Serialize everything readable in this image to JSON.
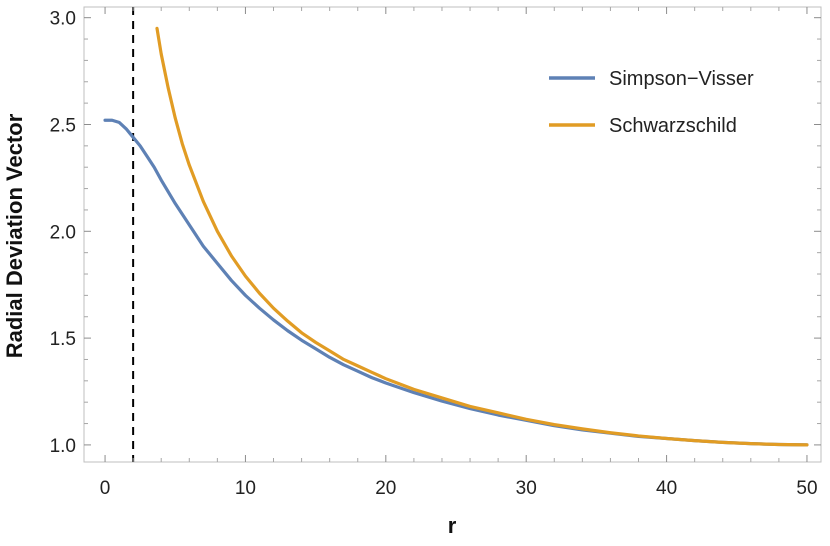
{
  "chart_data": {
    "type": "line",
    "title": "",
    "xlabel": "r",
    "ylabel": "Radial Deviation Vector",
    "xlim": [
      -1.5,
      51
    ],
    "ylim": [
      0.92,
      3.05
    ],
    "x_ticks": [
      0,
      10,
      20,
      30,
      40,
      50
    ],
    "y_ticks": [
      1.0,
      1.5,
      2.0,
      2.5,
      3.0
    ],
    "x_tick_labels": [
      "0",
      "10",
      "20",
      "30",
      "40",
      "50"
    ],
    "y_tick_labels": [
      "1.0",
      "1.5",
      "2.0",
      "2.5",
      "3.0"
    ],
    "grid": false,
    "legend_position": "top-right",
    "reference_line": {
      "x": 2,
      "style": "dashed",
      "color": "#000000"
    },
    "series": [
      {
        "name": "Simpson−Visser",
        "color": "#5E81B5",
        "points": [
          [
            0,
            2.52
          ],
          [
            0.5,
            2.52
          ],
          [
            1,
            2.51
          ],
          [
            1.5,
            2.48
          ],
          [
            2,
            2.44
          ],
          [
            2.5,
            2.4
          ],
          [
            3,
            2.35
          ],
          [
            3.5,
            2.3
          ],
          [
            4,
            2.24
          ],
          [
            5,
            2.13
          ],
          [
            6,
            2.03
          ],
          [
            7,
            1.93
          ],
          [
            8,
            1.85
          ],
          [
            9,
            1.77
          ],
          [
            10,
            1.7
          ],
          [
            11,
            1.64
          ],
          [
            12,
            1.585
          ],
          [
            13,
            1.535
          ],
          [
            14,
            1.49
          ],
          [
            15,
            1.45
          ],
          [
            16,
            1.41
          ],
          [
            17,
            1.375
          ],
          [
            18,
            1.345
          ],
          [
            19,
            1.315
          ],
          [
            20,
            1.29
          ],
          [
            22,
            1.245
          ],
          [
            24,
            1.205
          ],
          [
            26,
            1.17
          ],
          [
            28,
            1.14
          ],
          [
            30,
            1.115
          ],
          [
            32,
            1.09
          ],
          [
            34,
            1.07
          ],
          [
            36,
            1.055
          ],
          [
            38,
            1.04
          ],
          [
            40,
            1.03
          ],
          [
            42,
            1.02
          ],
          [
            44,
            1.012
          ],
          [
            46,
            1.006
          ],
          [
            48,
            1.002
          ],
          [
            50,
            1.0
          ]
        ]
      },
      {
        "name": "Schwarzschild",
        "color": "#E19C24",
        "points": [
          [
            3.7,
            2.95
          ],
          [
            4,
            2.83
          ],
          [
            4.5,
            2.67
          ],
          [
            5,
            2.53
          ],
          [
            5.5,
            2.41
          ],
          [
            6,
            2.31
          ],
          [
            7,
            2.14
          ],
          [
            8,
            2.0
          ],
          [
            9,
            1.885
          ],
          [
            10,
            1.79
          ],
          [
            11,
            1.71
          ],
          [
            12,
            1.64
          ],
          [
            13,
            1.58
          ],
          [
            14,
            1.525
          ],
          [
            15,
            1.48
          ],
          [
            16,
            1.44
          ],
          [
            17,
            1.4
          ],
          [
            18,
            1.37
          ],
          [
            19,
            1.34
          ],
          [
            20,
            1.31
          ],
          [
            22,
            1.26
          ],
          [
            24,
            1.22
          ],
          [
            26,
            1.18
          ],
          [
            28,
            1.15
          ],
          [
            30,
            1.12
          ],
          [
            32,
            1.095
          ],
          [
            34,
            1.075
          ],
          [
            36,
            1.057
          ],
          [
            38,
            1.042
          ],
          [
            40,
            1.03
          ],
          [
            42,
            1.02
          ],
          [
            44,
            1.012
          ],
          [
            46,
            1.006
          ],
          [
            48,
            1.002
          ],
          [
            50,
            1.0
          ]
        ]
      }
    ]
  }
}
